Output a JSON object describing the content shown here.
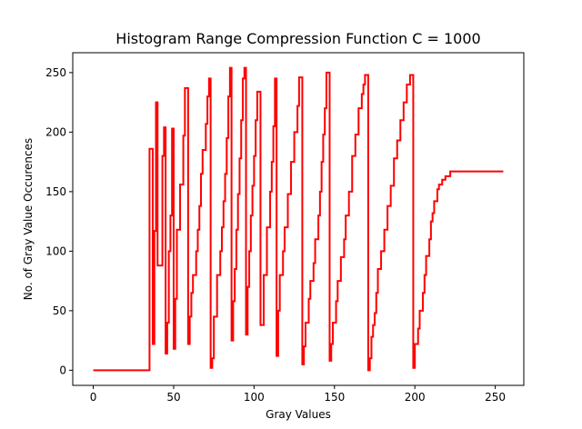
{
  "chart_data": {
    "type": "line",
    "drawstyle": "steps-post",
    "title": "Histogram Range Compression Function C = 1000",
    "x_label": "Gray Values",
    "y_label": "No. of Gray Value Occurences",
    "x": [
      0,
      35,
      37,
      38,
      39,
      40,
      43,
      44,
      45,
      46,
      47,
      48,
      49,
      50,
      51,
      52,
      54,
      56,
      57,
      59,
      60,
      61,
      62,
      64,
      65,
      66,
      67,
      68,
      70,
      71,
      72,
      73,
      74,
      75,
      77,
      79,
      80,
      81,
      82,
      83,
      84,
      85,
      86,
      87,
      88,
      89,
      90,
      91,
      92,
      93,
      94,
      95,
      96,
      97,
      98,
      99,
      100,
      101,
      102,
      104,
      106,
      108,
      110,
      111,
      112,
      113,
      114,
      115,
      116,
      118,
      119,
      121,
      123,
      125,
      127,
      128,
      130,
      131,
      132,
      134,
      135,
      137,
      138,
      140,
      141,
      142,
      143,
      144,
      145,
      147,
      148,
      149,
      151,
      152,
      154,
      156,
      157,
      159,
      161,
      163,
      165,
      167,
      168,
      169,
      171,
      172,
      173,
      174,
      175,
      176,
      177,
      179,
      181,
      183,
      185,
      187,
      189,
      191,
      193,
      195,
      197,
      199,
      200,
      202,
      203,
      205,
      206,
      207,
      209,
      210,
      211,
      212,
      214,
      215,
      217,
      219,
      222,
      255
    ],
    "series": [
      {
        "color": "#ff0000",
        "values": [
          0,
          186,
          22,
          117,
          225,
          88,
          180,
          204,
          14,
          40,
          100,
          130,
          203,
          18,
          60,
          118,
          156,
          197,
          237,
          22,
          45,
          65,
          80,
          100,
          118,
          138,
          165,
          185,
          207,
          230,
          245,
          2,
          10,
          45,
          80,
          100,
          120,
          142,
          165,
          195,
          230,
          254,
          25,
          58,
          85,
          118,
          148,
          178,
          210,
          245,
          254,
          30,
          70,
          100,
          130,
          155,
          180,
          210,
          234,
          38,
          80,
          120,
          150,
          175,
          205,
          245,
          12,
          50,
          80,
          100,
          120,
          148,
          175,
          200,
          222,
          246,
          5,
          20,
          40,
          60,
          75,
          90,
          110,
          130,
          150,
          175,
          198,
          220,
          250,
          8,
          22,
          40,
          58,
          75,
          95,
          110,
          130,
          150,
          180,
          198,
          220,
          232,
          240,
          248,
          0,
          10,
          28,
          38,
          48,
          65,
          85,
          100,
          118,
          138,
          155,
          178,
          193,
          210,
          225,
          240,
          248,
          2,
          22,
          35,
          50,
          65,
          80,
          96,
          110,
          125,
          132,
          142,
          152,
          156,
          160,
          163,
          167,
          167
        ]
      }
    ],
    "xlim": [
      -12.75,
      267.75
    ],
    "ylim": [
      -12.7,
      266.7
    ],
    "xticks": [
      0,
      50,
      100,
      150,
      200,
      250
    ],
    "yticks": [
      0,
      50,
      100,
      150,
      200,
      250
    ],
    "grid": false
  }
}
